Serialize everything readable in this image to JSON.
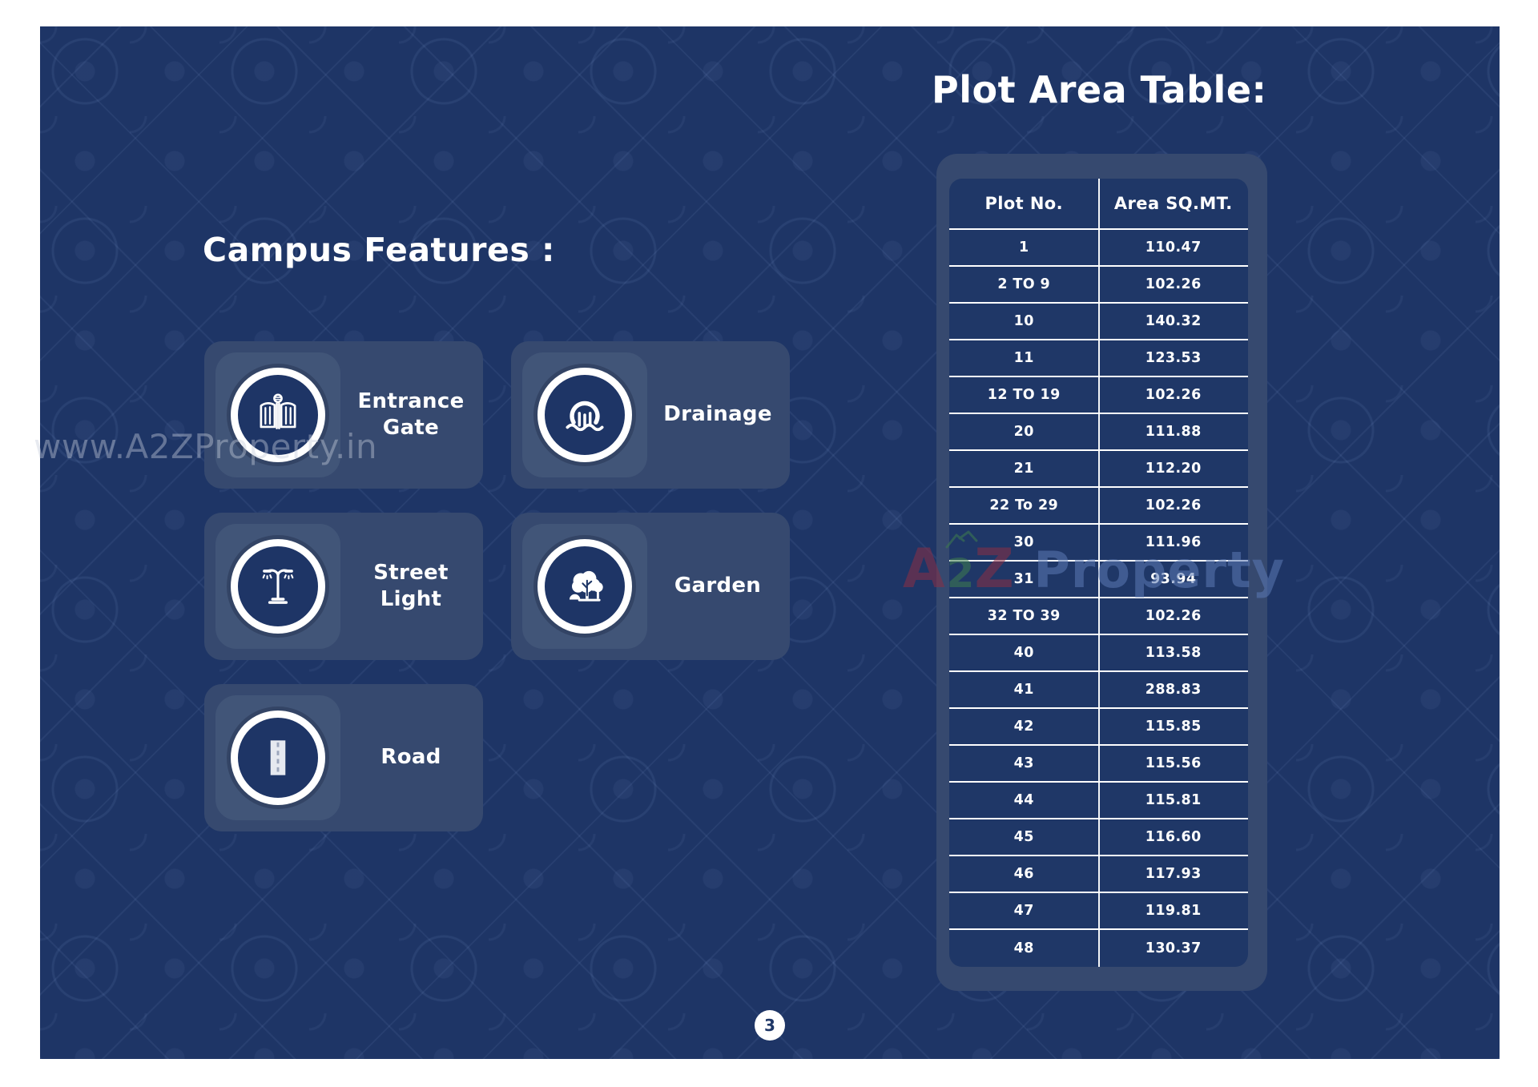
{
  "page": {
    "number": "3",
    "background_color": "#1E3566",
    "card_color": "#36496F",
    "tile_color": "#415578",
    "text_color": "#FFFFFF"
  },
  "watermarks": {
    "url_text": "www.A2ZProperty.in",
    "logo_a": "A",
    "logo_2": "2",
    "logo_z": "Z",
    "logo_property": "Property",
    "logo_colors": {
      "a2z": "#8B2E44",
      "two": "#3E7D4E",
      "property": "#5B79B4"
    }
  },
  "campus_features": {
    "title": "Campus Features :",
    "cards": [
      {
        "label": "Entrance Gate",
        "icon": "entrance-gate-icon"
      },
      {
        "label": "Drainage",
        "icon": "drainage-icon"
      },
      {
        "label": "Street Light",
        "icon": "street-light-icon"
      },
      {
        "label": "Garden",
        "icon": "garden-icon"
      },
      {
        "label": "Road",
        "icon": "road-icon"
      }
    ]
  },
  "plot_area_table": {
    "title": "Plot Area Table:",
    "columns": [
      "Plot No.",
      "Area SQ.MT."
    ],
    "rows": [
      [
        "1",
        "110.47"
      ],
      [
        "2 TO 9",
        "102.26"
      ],
      [
        "10",
        "140.32"
      ],
      [
        "11",
        "123.53"
      ],
      [
        "12 TO 19",
        "102.26"
      ],
      [
        "20",
        "111.88"
      ],
      [
        "21",
        "112.20"
      ],
      [
        "22 To 29",
        "102.26"
      ],
      [
        "30",
        "111.96"
      ],
      [
        "31",
        "93.94"
      ],
      [
        "32 TO 39",
        "102.26"
      ],
      [
        "40",
        "113.58"
      ],
      [
        "41",
        "288.83"
      ],
      [
        "42",
        "115.85"
      ],
      [
        "43",
        "115.56"
      ],
      [
        "44",
        "115.81"
      ],
      [
        "45",
        "116.60"
      ],
      [
        "46",
        "117.93"
      ],
      [
        "47",
        "119.81"
      ],
      [
        "48",
        "130.37"
      ]
    ]
  }
}
